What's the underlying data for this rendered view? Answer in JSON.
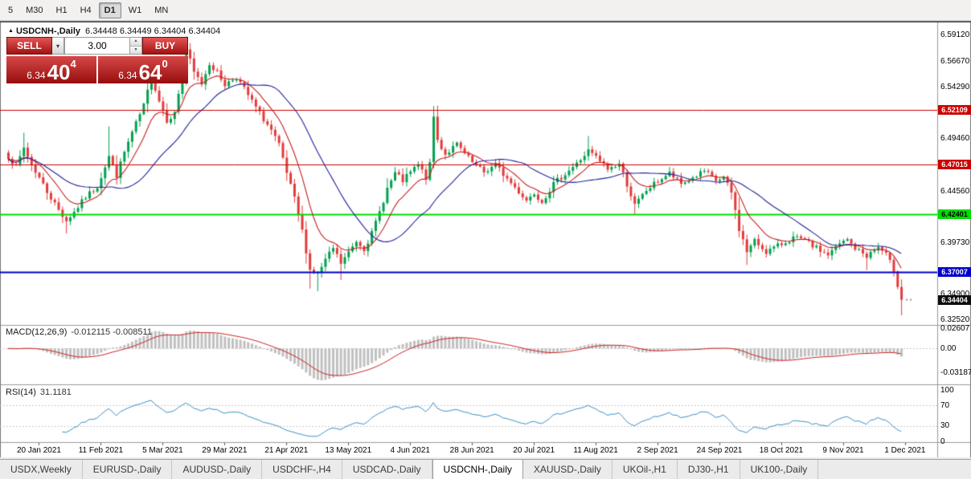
{
  "toolbar": {
    "items": [
      {
        "label": "5",
        "active": false
      },
      {
        "label": "M30",
        "active": false
      },
      {
        "label": "H1",
        "active": false
      },
      {
        "label": "H4",
        "active": false
      },
      {
        "label": "D1",
        "active": true
      },
      {
        "label": "W1",
        "active": false
      },
      {
        "label": "MN",
        "active": false
      }
    ]
  },
  "chart": {
    "title": {
      "symbol": "USDCNH-,Daily",
      "ohlc": "6.34448 6.34449 6.34404 6.34404"
    },
    "one_click": {
      "sell_label": "SELL",
      "buy_label": "BUY",
      "volume": "3.00",
      "sell_price": {
        "base": "6.34",
        "big": "40",
        "sup": "4"
      },
      "buy_price": {
        "base": "6.34",
        "big": "64",
        "sup": "0"
      }
    },
    "price_scale": {
      "labels": [
        {
          "value": 6.5912,
          "text": "6.59120"
        },
        {
          "value": 6.5667,
          "text": "6.56670"
        },
        {
          "value": 6.5429,
          "text": "6.54290"
        },
        {
          "value": 6.5191,
          "text": "6.51910"
        },
        {
          "value": 6.4946,
          "text": "6.49460"
        },
        {
          "value": 6.4456,
          "text": "6.44560"
        },
        {
          "value": 6.4218,
          "text": "6.42180"
        },
        {
          "value": 6.3973,
          "text": "6.39730"
        },
        {
          "value": 6.349,
          "text": "6.34900"
        },
        {
          "value": 6.3252,
          "text": "6.32520"
        }
      ]
    },
    "hlines": [
      {
        "price": 6.52109,
        "label": "6.52109",
        "color": "#cc0000",
        "width": 1,
        "text_color": "#ffffff"
      },
      {
        "price": 6.47015,
        "label": "6.47015",
        "color": "#cc0000",
        "width": 1,
        "text_color": "#ffffff"
      },
      {
        "price": 6.42401,
        "label": "6.42401",
        "color": "#00dd00",
        "width": 2,
        "text_color": "#000000"
      },
      {
        "price": 6.37007,
        "label": "6.37007",
        "color": "#0000cc",
        "width": 2,
        "text_color": "#ffffff"
      }
    ],
    "last_price": {
      "value": 6.34404,
      "label": "6.34404",
      "color": "#0d0d0d",
      "text_color": "#ffffff"
    },
    "chart_data": {
      "type": "candlestick",
      "symbol": "USDCNH-",
      "timeframe": "Daily",
      "count": 232,
      "seed": 7,
      "jitter": 0.0026,
      "last_close": 6.34404,
      "up_color": "#00a14e",
      "down_color": "#e23b3b",
      "anchors": [
        [
          0,
          6.478
        ],
        [
          2,
          6.468
        ],
        [
          4,
          6.486
        ],
        [
          6,
          6.47
        ],
        [
          8,
          6.458
        ],
        [
          10,
          6.445
        ],
        [
          13,
          6.428
        ],
        [
          15,
          6.418
        ],
        [
          17,
          6.426
        ],
        [
          20,
          6.44
        ],
        [
          23,
          6.45
        ],
        [
          26,
          6.478
        ],
        [
          28,
          6.46
        ],
        [
          30,
          6.482
        ],
        [
          32,
          6.5
        ],
        [
          35,
          6.525
        ],
        [
          37,
          6.552
        ],
        [
          39,
          6.53
        ],
        [
          41,
          6.512
        ],
        [
          43,
          6.518
        ],
        [
          45,
          6.556
        ],
        [
          46,
          6.578
        ],
        [
          48,
          6.556
        ],
        [
          50,
          6.546
        ],
        [
          52,
          6.565
        ],
        [
          54,
          6.556
        ],
        [
          56,
          6.545
        ],
        [
          59,
          6.552
        ],
        [
          62,
          6.535
        ],
        [
          65,
          6.518
        ],
        [
          68,
          6.502
        ],
        [
          70,
          6.488
        ],
        [
          72,
          6.462
        ],
        [
          74,
          6.438
        ],
        [
          76,
          6.408
        ],
        [
          78,
          6.372
        ],
        [
          80,
          6.368
        ],
        [
          82,
          6.381
        ],
        [
          84,
          6.392
        ],
        [
          86,
          6.378
        ],
        [
          88,
          6.388
        ],
        [
          90,
          6.399
        ],
        [
          92,
          6.392
        ],
        [
          94,
          6.406
        ],
        [
          96,
          6.426
        ],
        [
          98,
          6.448
        ],
        [
          100,
          6.462
        ],
        [
          102,
          6.455
        ],
        [
          104,
          6.463
        ],
        [
          106,
          6.47
        ],
        [
          108,
          6.458
        ],
        [
          109,
          6.47
        ],
        [
          110,
          6.515
        ],
        [
          111,
          6.493
        ],
        [
          113,
          6.48
        ],
        [
          116,
          6.489
        ],
        [
          118,
          6.48
        ],
        [
          120,
          6.472
        ],
        [
          123,
          6.463
        ],
        [
          126,
          6.47
        ],
        [
          129,
          6.457
        ],
        [
          132,
          6.445
        ],
        [
          134,
          6.437
        ],
        [
          136,
          6.444
        ],
        [
          138,
          6.436
        ],
        [
          141,
          6.452
        ],
        [
          144,
          6.462
        ],
        [
          147,
          6.471
        ],
        [
          150,
          6.483
        ],
        [
          152,
          6.477
        ],
        [
          155,
          6.466
        ],
        [
          158,
          6.471
        ],
        [
          160,
          6.452
        ],
        [
          162,
          6.432
        ],
        [
          165,
          6.446
        ],
        [
          168,
          6.455
        ],
        [
          171,
          6.462
        ],
        [
          174,
          6.452
        ],
        [
          177,
          6.458
        ],
        [
          180,
          6.464
        ],
        [
          183,
          6.455
        ],
        [
          185,
          6.458
        ],
        [
          187,
          6.444
        ],
        [
          189,
          6.41
        ],
        [
          191,
          6.389
        ],
        [
          193,
          6.399
        ],
        [
          196,
          6.389
        ],
        [
          200,
          6.396
        ],
        [
          203,
          6.402
        ],
        [
          206,
          6.399
        ],
        [
          209,
          6.392
        ],
        [
          212,
          6.386
        ],
        [
          215,
          6.396
        ],
        [
          217,
          6.4
        ],
        [
          219,
          6.392
        ],
        [
          222,
          6.385
        ],
        [
          225,
          6.393
        ],
        [
          227,
          6.386
        ],
        [
          229,
          6.372
        ],
        [
          230,
          6.358
        ],
        [
          231,
          6.34404
        ]
      ],
      "wick_events": [
        {
          "i": 4,
          "h": 6.5
        },
        {
          "i": 15,
          "l": 6.406
        },
        {
          "i": 26,
          "h": 6.506
        },
        {
          "i": 37,
          "h": 6.568
        },
        {
          "i": 46,
          "h": 6.59
        },
        {
          "i": 78,
          "l": 6.3545
        },
        {
          "i": 80,
          "l": 6.352
        },
        {
          "i": 86,
          "l": 6.3625
        },
        {
          "i": 110,
          "h": 6.5215
        },
        {
          "i": 150,
          "h": 6.497
        },
        {
          "i": 162,
          "l": 6.4235
        },
        {
          "i": 191,
          "l": 6.3765
        },
        {
          "i": 222,
          "l": 6.372
        },
        {
          "i": 231,
          "l": 6.3295
        }
      ],
      "ma": [
        {
          "type": "ema",
          "period": 10,
          "color": "#c82020"
        },
        {
          "type": "sma",
          "period": 25,
          "color": "#22229a"
        }
      ]
    },
    "macd": {
      "title": "MACD(12,26,9)",
      "values": "-0.012115 -0.008511",
      "fast": 12,
      "slow": 26,
      "signal": 9,
      "hist_color": "#c0c0c0",
      "signal_color": "#cc2222",
      "scale_labels": [
        {
          "value": 0.02607,
          "text": "0.02607"
        },
        {
          "value": 0,
          "text": "0.00"
        },
        {
          "value": -0.03187,
          "text": "-0.03187"
        }
      ]
    },
    "rsi": {
      "title": "RSI(14)",
      "value": "31.1181",
      "period": 14,
      "color": "#3d8fc4",
      "levels": [
        70,
        30
      ],
      "scale_labels": [
        {
          "value": 100,
          "text": "100"
        },
        {
          "value": 70,
          "text": "70"
        },
        {
          "value": 30,
          "text": "30"
        },
        {
          "value": 0,
          "text": "0"
        }
      ]
    },
    "dates": {
      "first_index": 8,
      "step": 16,
      "labels": [
        "20 Jan 2021",
        "11 Feb 2021",
        "5 Mar 2021",
        "29 Mar 2021",
        "21 Apr 2021",
        "13 May 2021",
        "4 Jun 2021",
        "28 Jun 2021",
        "20 Jul 2021",
        "11 Aug 2021",
        "2 Sep 2021",
        "24 Sep 2021",
        "18 Oct 2021",
        "9 Nov 2021",
        "1 Dec 2021"
      ]
    }
  },
  "tabs": {
    "items": [
      {
        "label": "USDX,Weekly",
        "active": false
      },
      {
        "label": "EURUSD-,Daily",
        "active": false
      },
      {
        "label": "AUDUSD-,Daily",
        "active": false
      },
      {
        "label": "USDCHF-,H4",
        "active": false
      },
      {
        "label": "USDCAD-,Daily",
        "active": false
      },
      {
        "label": "USDCNH-,Daily",
        "active": true
      },
      {
        "label": "XAUUSD-,Daily",
        "active": false
      },
      {
        "label": "UKOil-,H1",
        "active": false
      },
      {
        "label": "DJ30-,H1",
        "active": false
      },
      {
        "label": "UK100-,Daily",
        "active": false
      }
    ]
  }
}
